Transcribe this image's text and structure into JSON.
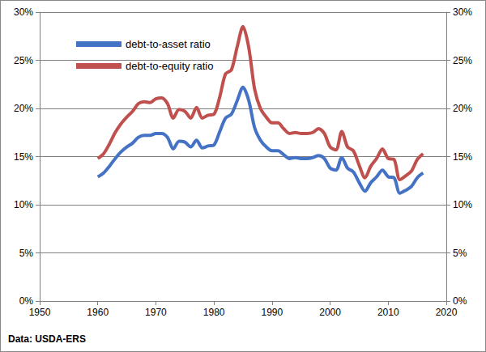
{
  "chart_data": {
    "type": "line",
    "caption": "Data: USDA-ERS",
    "x": [
      1960,
      1961,
      1962,
      1963,
      1964,
      1965,
      1966,
      1967,
      1968,
      1969,
      1970,
      1971,
      1972,
      1973,
      1974,
      1975,
      1976,
      1977,
      1978,
      1979,
      1980,
      1981,
      1982,
      1983,
      1984,
      1985,
      1986,
      1987,
      1988,
      1989,
      1990,
      1991,
      1992,
      1993,
      1994,
      1995,
      1996,
      1997,
      1998,
      1999,
      2000,
      2001,
      2002,
      2003,
      2004,
      2005,
      2006,
      2007,
      2008,
      2009,
      2010,
      2011,
      2012,
      2013,
      2014,
      2015,
      2016
    ],
    "series": [
      {
        "name": "debt-to-asset ratio",
        "color": "#4472c4",
        "values": [
          12.9,
          13.3,
          14.0,
          14.8,
          15.5,
          16.0,
          16.4,
          17.0,
          17.2,
          17.2,
          17.4,
          17.4,
          17.0,
          15.8,
          16.6,
          16.5,
          16.0,
          16.7,
          15.9,
          16.1,
          16.2,
          17.6,
          19.0,
          19.4,
          20.8,
          22.2,
          20.8,
          18.0,
          16.7,
          16.0,
          15.6,
          15.6,
          15.2,
          14.8,
          14.9,
          14.8,
          14.8,
          14.9,
          15.1,
          14.8,
          13.8,
          13.6,
          14.9,
          13.8,
          13.4,
          12.3,
          11.4,
          12.3,
          12.9,
          13.6,
          12.9,
          12.8,
          11.2,
          11.5,
          11.9,
          12.8,
          13.3
        ]
      },
      {
        "name": "debt-to-equity ratio",
        "color": "#c0504d",
        "values": [
          14.8,
          15.3,
          16.3,
          17.5,
          18.4,
          19.1,
          19.7,
          20.5,
          20.7,
          20.6,
          21.0,
          21.1,
          20.5,
          19.0,
          19.9,
          19.7,
          19.0,
          20.1,
          19.0,
          19.3,
          19.4,
          21.2,
          23.6,
          24.0,
          26.4,
          28.5,
          26.3,
          22.0,
          20.0,
          19.1,
          18.5,
          18.5,
          17.9,
          17.4,
          17.5,
          17.4,
          17.4,
          17.5,
          17.9,
          17.4,
          16.0,
          15.7,
          17.6,
          16.0,
          15.6,
          14.1,
          12.8,
          14.0,
          14.8,
          15.8,
          14.8,
          14.7,
          12.6,
          13.0,
          13.5,
          14.7,
          15.3
        ]
      }
    ],
    "xlim": [
      1950,
      2020
    ],
    "xticks": [
      1950,
      1960,
      1970,
      1980,
      1990,
      2000,
      2010,
      2020
    ],
    "ylim": [
      0,
      30
    ],
    "yticks": [
      {
        "value": 0,
        "label": "0%"
      },
      {
        "value": 5,
        "label": "5%"
      },
      {
        "value": 10,
        "label": "10%"
      },
      {
        "value": 15,
        "label": "15%"
      },
      {
        "value": 20,
        "label": "20%"
      },
      {
        "value": 25,
        "label": "25%"
      },
      {
        "value": 30,
        "label": "30%"
      }
    ],
    "y2lim": [
      0,
      30
    ],
    "y2ticks": [
      {
        "value": 0,
        "label": "0%"
      },
      {
        "value": 5,
        "label": "5%"
      },
      {
        "value": 10,
        "label": "10%"
      },
      {
        "value": 15,
        "label": "15%"
      },
      {
        "value": 20,
        "label": "20%"
      },
      {
        "value": 25,
        "label": "25%"
      },
      {
        "value": 30,
        "label": "30%"
      }
    ],
    "grid": true,
    "legend": "top-left"
  }
}
